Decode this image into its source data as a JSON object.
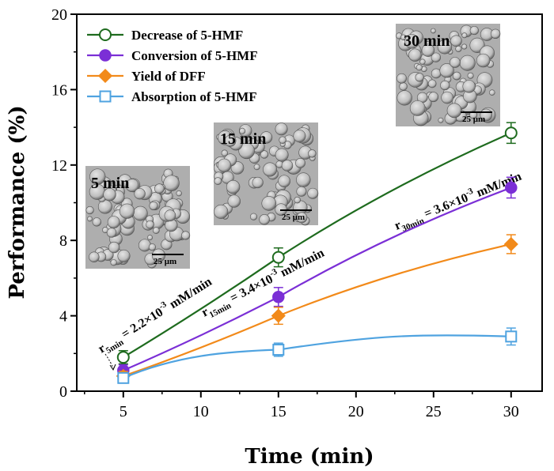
{
  "chart_data": {
    "type": "line",
    "xlabel": "Time (min)",
    "ylabel": "Performance (%)",
    "xlim": [
      2,
      32
    ],
    "ylim": [
      0,
      20
    ],
    "xticks": [
      "5",
      "10",
      "15",
      "20",
      "25",
      "30"
    ],
    "xtick_values": [
      5,
      10,
      15,
      20,
      25,
      30
    ],
    "yticks": [
      "0",
      "4",
      "8",
      "12",
      "16",
      "20"
    ],
    "ytick_values": [
      0,
      4,
      8,
      12,
      16,
      20
    ],
    "grid": false,
    "legend_position": "top-left",
    "x": [
      5,
      15,
      30
    ],
    "series": [
      {
        "name": "Decrease of 5-HMF",
        "values": [
          1.8,
          7.1,
          13.7
        ],
        "errors": [
          0.35,
          0.5,
          0.55
        ],
        "color": "#1e6b1e",
        "marker": "open-circle"
      },
      {
        "name": "Conversion of 5-HMF",
        "values": [
          1.1,
          5.0,
          10.8
        ],
        "errors": [
          0.3,
          0.5,
          0.55
        ],
        "color": "#7b2fd6",
        "marker": "filled-circle"
      },
      {
        "name": "Yield of DFF",
        "values": [
          0.8,
          4.0,
          7.8
        ],
        "errors": [
          0.25,
          0.45,
          0.5
        ],
        "color": "#f28a1a",
        "marker": "filled-diamond"
      },
      {
        "name": "Absorption of 5-HMF",
        "values": [
          0.7,
          2.2,
          2.9
        ],
        "errors": [
          0.2,
          0.35,
          0.45
        ],
        "color": "#4fa3e0",
        "marker": "open-square"
      }
    ],
    "annotations": [
      {
        "prefix": "r",
        "sub": "5min",
        "mid": " = 2.2×10",
        "sup": "-3",
        "suffix": " mM/min"
      },
      {
        "prefix": "r",
        "sub": "15min",
        "mid": " = 3.4×10",
        "sup": "-3",
        "suffix": " mM/min"
      },
      {
        "prefix": "r",
        "sub": "30min",
        "mid": " = 3.6×10",
        "sup": "-3",
        "suffix": " mM/min"
      }
    ],
    "insets": [
      {
        "label": "5 min",
        "scale": "25 μm"
      },
      {
        "label": "15 min",
        "scale": "25 μm"
      },
      {
        "label": "30 min",
        "scale": "25 μm"
      }
    ]
  }
}
